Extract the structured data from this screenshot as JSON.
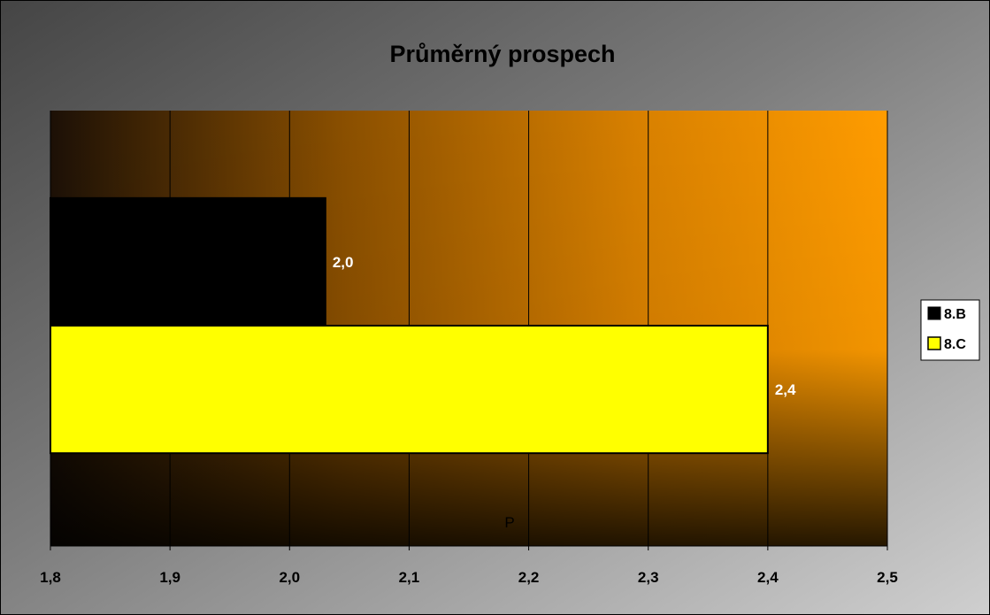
{
  "chart_data": {
    "type": "bar",
    "orientation": "horizontal",
    "title": "Průměrný prospech",
    "category_label": "P",
    "series": [
      {
        "name": "8.B",
        "value": 2.03,
        "value_label": "2,0",
        "color": "#000000"
      },
      {
        "name": "8.C",
        "value": 2.4,
        "value_label": "2,4",
        "color": "#ffff00"
      }
    ],
    "xlim": [
      1.8,
      2.5
    ],
    "x_ticks": [
      1.8,
      1.9,
      2.0,
      2.1,
      2.2,
      2.3,
      2.4,
      2.5
    ],
    "x_tick_labels": [
      "1,8",
      "1,9",
      "2,0",
      "2,1",
      "2,2",
      "2,3",
      "2,4",
      "2,5"
    ],
    "grid": "vertical",
    "legend_position": "right",
    "colors": {
      "chart_background": "gray gradient",
      "plot_background": "black to orange gradient",
      "plot_accent": "#ff9900"
    }
  }
}
